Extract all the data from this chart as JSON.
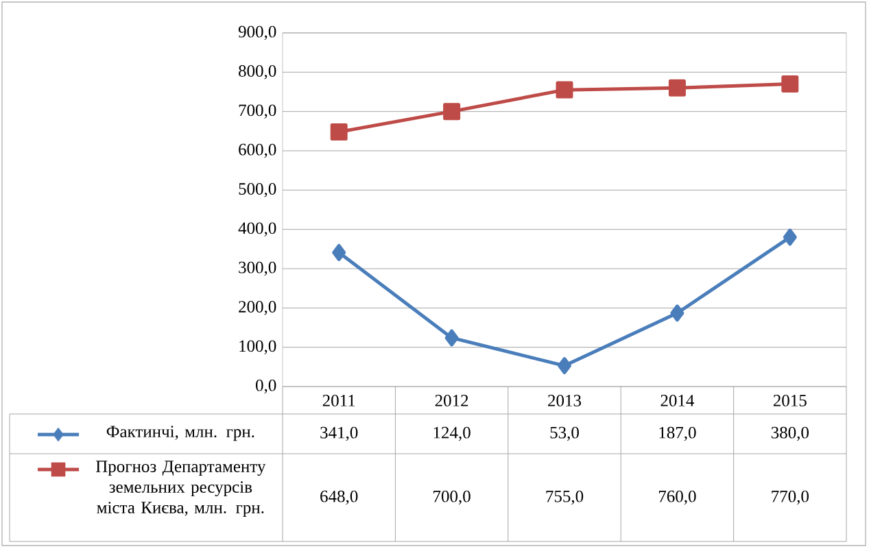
{
  "chart_data": {
    "type": "line",
    "categories": [
      "2011",
      "2012",
      "2013",
      "2014",
      "2015"
    ],
    "series": [
      {
        "name": "Фактинчі, млн. грн.",
        "color": "#4a7ebb",
        "marker": "diamond",
        "values": [
          341,
          124,
          53,
          187,
          380
        ],
        "value_labels": [
          "341,0",
          "124,0",
          "53,0",
          "187,0",
          "380,0"
        ]
      },
      {
        "name": "Прогноз Департаменту земельних ресурсів міста Києва, млн. грн.",
        "color": "#be4b48",
        "marker": "square",
        "values": [
          648,
          700,
          755,
          760,
          770
        ],
        "value_labels": [
          "648,0",
          "700,0",
          "755,0",
          "760,0",
          "770,0"
        ]
      }
    ],
    "ylim": [
      0,
      900
    ],
    "yticks": [
      {
        "value": 0,
        "label": "0,0"
      },
      {
        "value": 100,
        "label": "100,0"
      },
      {
        "value": 200,
        "label": "200,0"
      },
      {
        "value": 300,
        "label": "300,0"
      },
      {
        "value": 400,
        "label": "400,0"
      },
      {
        "value": 500,
        "label": "500,0"
      },
      {
        "value": 600,
        "label": "600,0"
      },
      {
        "value": 700,
        "label": "700,0"
      },
      {
        "value": 800,
        "label": "800,0"
      },
      {
        "value": 900,
        "label": "900,0"
      }
    ],
    "grid": "y",
    "legend": "bottom"
  }
}
